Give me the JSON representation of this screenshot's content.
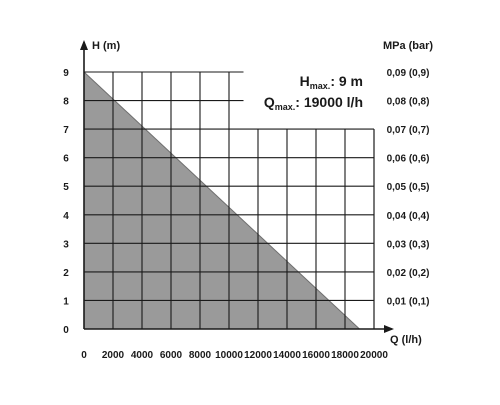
{
  "chart_data": {
    "type": "area",
    "title": "",
    "xlabel": "Q (l/h)",
    "ylabel": "H (m)",
    "ylabel_right": "MPa (bar)",
    "x": [
      0,
      19000
    ],
    "y": [
      9,
      0
    ],
    "xlim": [
      0,
      20000
    ],
    "ylim": [
      0,
      9
    ],
    "x_ticks": [
      0,
      2000,
      4000,
      6000,
      8000,
      10000,
      12000,
      14000,
      16000,
      18000,
      20000
    ],
    "y_ticks": [
      0,
      1,
      2,
      3,
      4,
      5,
      6,
      7,
      8,
      9
    ],
    "y_right_ticks": [
      "0,01 (0,1)",
      "0,02 (0,2)",
      "0,03 (0,3)",
      "0,04 (0,4)",
      "0,05 (0,5)",
      "0,06 (0,6)",
      "0,07 (0,7)",
      "0,08 (0,8)",
      "0,09 (0,9)"
    ],
    "grid": true,
    "fill_color": "#9a9a9a",
    "grid_color": "#1a1a1a",
    "annotations": {
      "hmax_main": "H",
      "hmax_sub": "max.",
      "hmax_value": ": 9 m",
      "qmax_main": "Q",
      "qmax_sub": "max.",
      "qmax_value": ": 19000 l/h"
    }
  }
}
